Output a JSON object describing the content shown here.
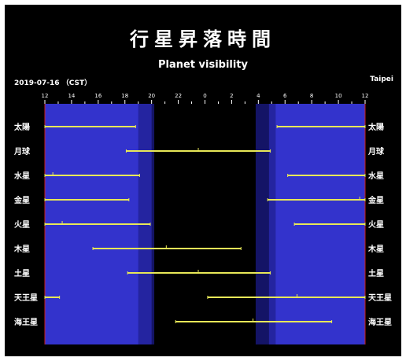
{
  "header": {
    "title_cn": "行星昇落時間",
    "subtitle": "Planet visibility",
    "date": "2019-07-16 （CST）",
    "location": "Taipei"
  },
  "colors": {
    "background": "#000000",
    "day": "#3333cc",
    "twilight_civil": "#2424a0",
    "twilight_nautical": "#141466",
    "night": "#000000",
    "bar": "#e8e858",
    "text": "#ffffff",
    "frame": "#cc2222"
  },
  "chart_data": {
    "type": "bar",
    "orientation": "horizontal-timeline",
    "x_axis": {
      "unit": "hour of day (local)",
      "range_label": "12 → 12 (next day)",
      "tick_labels": [
        "12",
        "14",
        "16",
        "18",
        "20",
        "22",
        "0",
        "2",
        "4",
        "6",
        "8",
        "10",
        "12"
      ],
      "start_hour": 12,
      "span_hours": 24
    },
    "sky_bands": {
      "day_ends": 19.0,
      "civil_twilight_ends": 20.0,
      "night_starts": 20.2,
      "night_ends": 3.8,
      "civil_twilight_starts": 4.8,
      "day_starts": 5.3
    },
    "rows": [
      {
        "name": "太陽",
        "segments": [
          [
            12.0,
            18.8
          ],
          [
            5.4,
            12.0
          ]
        ],
        "transit": null
      },
      {
        "name": "月球",
        "segments": [
          [
            18.1,
            4.9
          ]
        ],
        "transit": 23.5
      },
      {
        "name": "水星",
        "segments": [
          [
            12.0,
            19.1
          ],
          [
            6.2,
            12.0
          ]
        ],
        "transit": 12.6
      },
      {
        "name": "金星",
        "segments": [
          [
            12.0,
            18.3
          ],
          [
            4.7,
            12.0
          ]
        ],
        "transit": 11.6
      },
      {
        "name": "火星",
        "segments": [
          [
            12.0,
            19.9
          ],
          [
            6.7,
            12.0
          ]
        ],
        "transit": 13.3
      },
      {
        "name": "木星",
        "segments": [
          [
            15.6,
            2.7
          ]
        ],
        "transit": 21.1
      },
      {
        "name": "土星",
        "segments": [
          [
            18.2,
            4.9
          ]
        ],
        "transit": 23.5
      },
      {
        "name": "天王星",
        "segments": [
          [
            12.0,
            13.1
          ],
          [
            0.2,
            12.0
          ]
        ],
        "transit": 6.9
      },
      {
        "name": "海王星",
        "segments": [
          [
            21.8,
            9.5
          ]
        ],
        "transit": 3.6
      }
    ]
  }
}
